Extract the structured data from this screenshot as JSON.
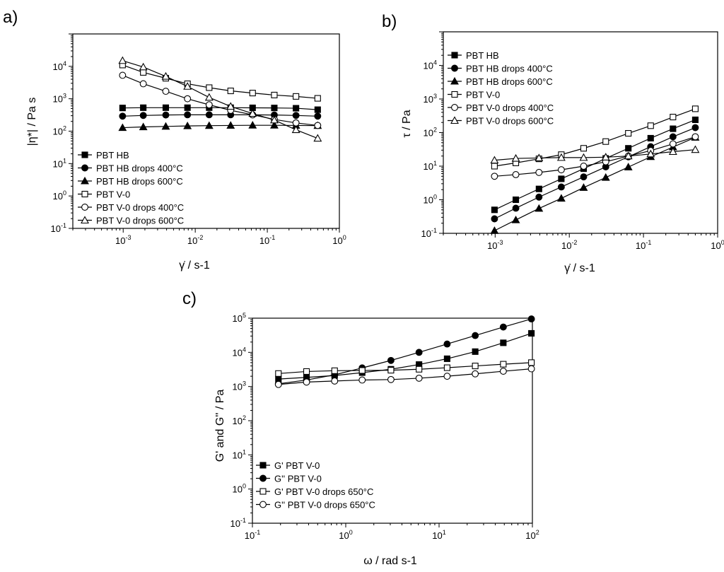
{
  "chart_data": [
    {
      "panel": "a)",
      "type": "line",
      "xlabel": "γ̇ / s-1",
      "ylabel": "|η*| / Pa s",
      "xscale": "log",
      "yscale": "log",
      "xlim": [
        0.0002,
        1
      ],
      "ylim": [
        0.1,
        100000
      ],
      "x_ticks": [
        "10-3",
        "10-2",
        "10-1",
        "100"
      ],
      "y_ticks": [
        "10-1",
        "100",
        "101",
        "102",
        "103",
        "104"
      ],
      "legend_position": "bottom-left",
      "series": [
        {
          "name": "PBT HB",
          "marker": "square",
          "fill": "filled",
          "x": [
            0.00098,
            0.0019,
            0.0039,
            0.0078,
            0.0156,
            0.031,
            0.0625,
            0.125,
            0.25,
            0.5
          ],
          "y": [
            520,
            530,
            530,
            530,
            530,
            530,
            525,
            520,
            510,
            460
          ]
        },
        {
          "name": "PBT HB drops 400°C",
          "marker": "circle",
          "fill": "filled",
          "x": [
            0.00098,
            0.0019,
            0.0039,
            0.0078,
            0.0156,
            0.031,
            0.0625,
            0.125,
            0.25,
            0.5
          ],
          "y": [
            290,
            305,
            315,
            320,
            320,
            320,
            320,
            315,
            305,
            290
          ]
        },
        {
          "name": "PBT HB drops 600°C",
          "marker": "triangle",
          "fill": "filled",
          "x": [
            0.00098,
            0.0019,
            0.0039,
            0.0078,
            0.0156,
            0.031,
            0.0625,
            0.125,
            0.25,
            0.5
          ],
          "y": [
            128,
            135,
            140,
            145,
            148,
            150,
            152,
            152,
            150,
            148
          ]
        },
        {
          "name": "PBT V-0",
          "marker": "square",
          "fill": "open",
          "x": [
            0.00098,
            0.0019,
            0.0039,
            0.0078,
            0.0156,
            0.031,
            0.0625,
            0.125,
            0.25,
            0.5
          ],
          "y": [
            11000,
            6500,
            4300,
            2900,
            2200,
            1750,
            1500,
            1300,
            1180,
            1030
          ]
        },
        {
          "name": "PBT V-0 drops 400°C",
          "marker": "circle",
          "fill": "open",
          "x": [
            0.00098,
            0.0019,
            0.0039,
            0.0078,
            0.0156,
            0.031,
            0.0625,
            0.125,
            0.25,
            0.5
          ],
          "y": [
            5300,
            2900,
            1700,
            1000,
            650,
            440,
            320,
            230,
            180,
            150
          ]
        },
        {
          "name": "PBT V-0 drops 600°C",
          "marker": "triangle",
          "fill": "open",
          "x": [
            0.00098,
            0.0019,
            0.0039,
            0.0078,
            0.0156,
            0.031,
            0.0625,
            0.125,
            0.25,
            0.5
          ],
          "y": [
            15000,
            9500,
            4900,
            2400,
            1100,
            580,
            350,
            220,
            110,
            60
          ]
        }
      ]
    },
    {
      "panel": "b)",
      "type": "line",
      "xlabel": "γ̇ / s-1",
      "ylabel": "τ / Pa",
      "xscale": "log",
      "yscale": "log",
      "xlim": [
        0.0002,
        1
      ],
      "ylim": [
        0.1,
        100000
      ],
      "x_ticks": [
        "10-3",
        "10-2",
        "10-1",
        "100"
      ],
      "y_ticks": [
        "10-1",
        "100",
        "101",
        "102",
        "103",
        "104"
      ],
      "legend_position": "top-left",
      "series": [
        {
          "name": "PBT HB",
          "marker": "square",
          "fill": "filled",
          "x": [
            0.00098,
            0.0019,
            0.0039,
            0.0078,
            0.0156,
            0.031,
            0.0625,
            0.125,
            0.25,
            0.5
          ],
          "y": [
            0.5,
            1.0,
            2.1,
            4.2,
            8.4,
            17,
            34,
            68,
            130,
            240
          ]
        },
        {
          "name": "PBT HB drops 400°C",
          "marker": "circle",
          "fill": "filled",
          "x": [
            0.00098,
            0.0019,
            0.0039,
            0.0078,
            0.0156,
            0.031,
            0.0625,
            0.125,
            0.25,
            0.5
          ],
          "y": [
            0.27,
            0.56,
            1.2,
            2.4,
            4.8,
            9.5,
            19,
            38,
            75,
            140
          ]
        },
        {
          "name": "PBT HB drops 600°C",
          "marker": "triangle",
          "fill": "filled",
          "x": [
            0.00098,
            0.0019,
            0.0039,
            0.0078,
            0.0156,
            0.031,
            0.0625,
            0.125,
            0.25,
            0.5
          ],
          "y": [
            0.12,
            0.25,
            0.55,
            1.1,
            2.3,
            4.6,
            9.4,
            19,
            37,
            72
          ]
        },
        {
          "name": "PBT V-0",
          "marker": "square",
          "fill": "open",
          "x": [
            0.00098,
            0.0019,
            0.0039,
            0.0078,
            0.0156,
            0.031,
            0.0625,
            0.125,
            0.25,
            0.5
          ],
          "y": [
            10,
            12.5,
            16.5,
            22,
            34,
            54,
            95,
            160,
            290,
            510
          ]
        },
        {
          "name": "PBT V-0 drops 400°C",
          "marker": "circle",
          "fill": "open",
          "x": [
            0.00098,
            0.0019,
            0.0039,
            0.0078,
            0.0156,
            0.031,
            0.0625,
            0.125,
            0.25,
            0.5
          ],
          "y": [
            5,
            5.6,
            6.5,
            7.8,
            10,
            13.5,
            20,
            29,
            46,
            75
          ]
        },
        {
          "name": "PBT V-0 drops 600°C",
          "marker": "triangle",
          "fill": "open",
          "x": [
            0.00098,
            0.0019,
            0.0039,
            0.0078,
            0.0156,
            0.031,
            0.0625,
            0.125,
            0.25,
            0.5
          ],
          "y": [
            15,
            17,
            17.5,
            18,
            18,
            18.5,
            20,
            23,
            27,
            31
          ]
        }
      ]
    },
    {
      "panel": "c)",
      "type": "line",
      "xlabel": "ω / rad s-1",
      "ylabel": "G' and G'' / Pa",
      "xscale": "log",
      "yscale": "log",
      "xlim": [
        0.1,
        100
      ],
      "ylim": [
        0.1,
        100000
      ],
      "x_ticks": [
        "10-1",
        "100",
        "101",
        "102"
      ],
      "y_ticks": [
        "10-1",
        "100",
        "101",
        "102",
        "103",
        "104",
        "105"
      ],
      "legend_position": "bottom-left",
      "series": [
        {
          "name": "G'  PBT V-0",
          "marker": "square",
          "fill": "filled",
          "x": [
            0.19,
            0.38,
            0.76,
            1.5,
            3.05,
            6.1,
            12.2,
            24.4,
            48.8,
            97.6
          ],
          "y": [
            1650,
            1850,
            2100,
            2550,
            3200,
            4400,
            6500,
            10500,
            19000,
            36000
          ]
        },
        {
          "name": "G''  PBT V-0",
          "marker": "circle",
          "fill": "filled",
          "x": [
            0.19,
            0.38,
            0.76,
            1.5,
            3.05,
            6.1,
            12.2,
            24.4,
            48.8,
            97.6
          ],
          "y": [
            1200,
            1550,
            2200,
            3500,
            5800,
            10000,
            17500,
            31000,
            55000,
            95000
          ]
        },
        {
          "name": "G'  PBT V-0  drops 650°C",
          "marker": "square",
          "fill": "open",
          "x": [
            0.19,
            0.38,
            0.76,
            1.5,
            3.05,
            6.1,
            12.2,
            24.4,
            48.8,
            97.6
          ],
          "y": [
            2400,
            2750,
            2900,
            2950,
            3000,
            3200,
            3550,
            4000,
            4500,
            5000
          ]
        },
        {
          "name": "G''  PBT V-0  drops 650°C",
          "marker": "circle",
          "fill": "open",
          "x": [
            0.19,
            0.38,
            0.76,
            1.5,
            3.05,
            6.1,
            12.2,
            24.4,
            48.8,
            97.6
          ],
          "y": [
            1150,
            1350,
            1450,
            1550,
            1600,
            1750,
            2000,
            2350,
            2800,
            3300
          ]
        }
      ]
    }
  ]
}
